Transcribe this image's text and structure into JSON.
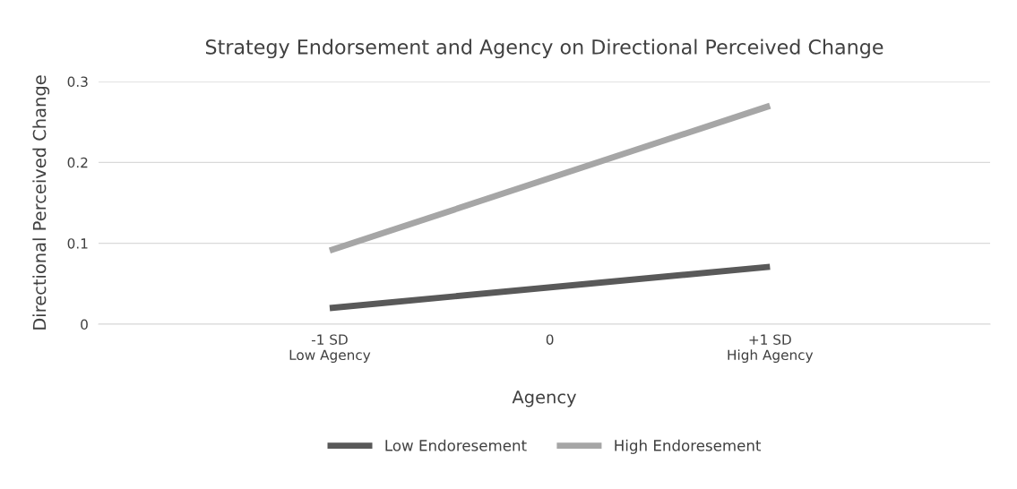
{
  "chart_data": {
    "type": "line",
    "title": "Strategy Endorsement and Agency on Directional Perceived Change",
    "xlabel": "Agency",
    "ylabel": "Directional Perceived Change",
    "x": [
      -1,
      1
    ],
    "series": [
      {
        "name": "Low Endoresement",
        "color": "#595959",
        "values": [
          0.02,
          0.071
        ]
      },
      {
        "name": "High Endoresement",
        "color": "#a6a6a6",
        "values": [
          0.091,
          0.27
        ]
      }
    ],
    "xlim": [
      -2.05,
      2.0
    ],
    "xticks": [
      {
        "value": -1,
        "label": "-1 SD\nLow Agency"
      },
      0,
      {
        "value": 1,
        "label": "+1 SD\nHigh Agency"
      }
    ],
    "ylim": [
      0,
      0.3
    ],
    "yticks": [
      {
        "value": 0,
        "label": "0"
      },
      0.1,
      0.2,
      0.3
    ],
    "grid": "y",
    "legend": "bottom",
    "marker": "none",
    "line_style": "solid"
  }
}
